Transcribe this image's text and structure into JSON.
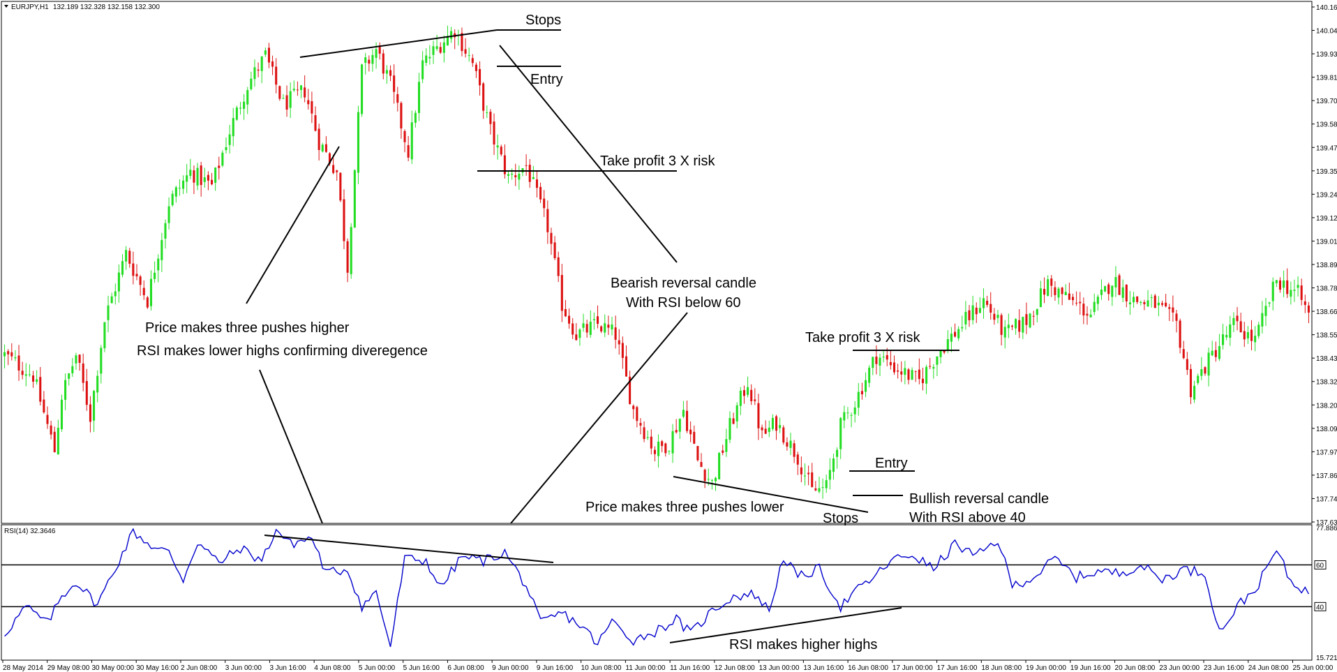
{
  "window": {
    "symbol_label": "EURJPY,H1",
    "ohlc_label": "132.189 132.328 132.158 132.300",
    "indicator_label": "RSI(14) 32.3646"
  },
  "colors": {
    "bull": "#22dd22",
    "bear": "#dd1111",
    "rsi_line": "#0000cc",
    "annotation": "#000000",
    "background": "#ffffff"
  },
  "chart_data": [
    {
      "type": "candlestick",
      "title": "EURJPY,H1",
      "ylim": [
        137.63,
        140.16
      ],
      "price_ticks": [
        "140.160",
        "140.045",
        "139.930",
        "139.815",
        "139.700",
        "139.585",
        "139.470",
        "139.355",
        "139.240",
        "139.125",
        "139.010",
        "138.895",
        "138.780",
        "138.665",
        "138.550",
        "138.435",
        "138.320",
        "138.205",
        "138.090",
        "137.975",
        "137.860",
        "137.745",
        "137.630"
      ],
      "time_ticks": [
        "28 May 2014",
        "29 May 08:00",
        "30 May 00:00",
        "30 May 16:00",
        "2 Jun 08:00",
        "3 Jun 00:00",
        "3 Jun 16:00",
        "4 Jun 08:00",
        "5 Jun 00:00",
        "5 Jun 16:00",
        "6 Jun 08:00",
        "9 Jun 00:00",
        "9 Jun 16:00",
        "10 Jun 08:00",
        "11 Jun 00:00",
        "11 Jun 16:00",
        "12 Jun 08:00",
        "13 Jun 00:00",
        "13 Jun 16:00",
        "16 Jun 08:00",
        "17 Jun 00:00",
        "17 Jun 16:00",
        "18 Jun 08:00",
        "19 Jun 00:00",
        "19 Jun 16:00",
        "20 Jun 08:00",
        "23 Jun 00:00",
        "23 Jun 16:00",
        "24 Jun 08:00",
        "25 Jun 00:00"
      ],
      "close_path": [
        [
          0,
          138.45
        ],
        [
          8,
          138.35
        ],
        [
          14,
          137.98
        ],
        [
          16,
          138.25
        ],
        [
          20,
          138.45
        ],
        [
          24,
          138.15
        ],
        [
          28,
          138.62
        ],
        [
          34,
          138.95
        ],
        [
          40,
          138.72
        ],
        [
          46,
          139.2
        ],
        [
          52,
          139.35
        ],
        [
          58,
          139.28
        ],
        [
          63,
          139.55
        ],
        [
          68,
          139.78
        ],
        [
          73,
          139.92
        ],
        [
          78,
          139.68
        ],
        [
          84,
          139.75
        ],
        [
          88,
          139.5
        ],
        [
          93,
          139.35
        ],
        [
          96,
          138.88
        ],
        [
          100,
          139.85
        ],
        [
          104,
          139.95
        ],
        [
          108,
          139.78
        ],
        [
          113,
          139.45
        ],
        [
          117,
          139.88
        ],
        [
          122,
          139.98
        ],
        [
          126,
          140.05
        ],
        [
          131,
          139.88
        ],
        [
          136,
          139.55
        ],
        [
          141,
          139.32
        ],
        [
          146,
          139.38
        ],
        [
          152,
          139.08
        ],
        [
          156,
          138.7
        ],
        [
          160,
          138.55
        ],
        [
          166,
          138.6
        ],
        [
          171,
          138.55
        ],
        [
          176,
          138.18
        ],
        [
          182,
          137.98
        ],
        [
          186,
          138.02
        ],
        [
          190,
          138.18
        ],
        [
          194,
          137.93
        ],
        [
          198,
          137.82
        ],
        [
          203,
          138.1
        ],
        [
          208,
          138.32
        ],
        [
          212,
          138.05
        ],
        [
          216,
          138.12
        ],
        [
          222,
          137.95
        ],
        [
          226,
          137.78
        ],
        [
          230,
          137.8
        ],
        [
          234,
          138.1
        ],
        [
          238,
          138.22
        ],
        [
          244,
          138.45
        ],
        [
          250,
          138.38
        ],
        [
          256,
          138.32
        ],
        [
          262,
          138.48
        ],
        [
          268,
          138.6
        ],
        [
          274,
          138.72
        ],
        [
          280,
          138.55
        ],
        [
          286,
          138.62
        ],
        [
          292,
          138.8
        ],
        [
          298,
          138.72
        ],
        [
          304,
          138.65
        ],
        [
          310,
          138.82
        ],
        [
          316,
          138.72
        ],
        [
          322,
          138.7
        ],
        [
          328,
          138.6
        ],
        [
          332,
          138.28
        ],
        [
          338,
          138.45
        ],
        [
          344,
          138.6
        ],
        [
          350,
          138.52
        ],
        [
          356,
          138.82
        ],
        [
          362,
          138.75
        ],
        [
          366,
          138.62
        ]
      ],
      "candle_count": 366
    },
    {
      "type": "line",
      "title": "RSI(14) 32.3646",
      "ylim": [
        15.721,
        77.8868
      ],
      "ticks": [
        "77.8868",
        "60",
        "40",
        "15.721"
      ],
      "levels": [
        60,
        40
      ],
      "rsi_path": [
        [
          0,
          27
        ],
        [
          6,
          40
        ],
        [
          12,
          32
        ],
        [
          16,
          45
        ],
        [
          20,
          52
        ],
        [
          26,
          41
        ],
        [
          32,
          62
        ],
        [
          36,
          76
        ],
        [
          42,
          68
        ],
        [
          46,
          66
        ],
        [
          50,
          53
        ],
        [
          54,
          71
        ],
        [
          60,
          61
        ],
        [
          66,
          68
        ],
        [
          72,
          62
        ],
        [
          76,
          77
        ],
        [
          80,
          70
        ],
        [
          86,
          73
        ],
        [
          90,
          56
        ],
        [
          96,
          58
        ],
        [
          100,
          40
        ],
        [
          104,
          47
        ],
        [
          108,
          21
        ],
        [
          112,
          63
        ],
        [
          118,
          62
        ],
        [
          122,
          49
        ],
        [
          128,
          64
        ],
        [
          134,
          62
        ],
        [
          140,
          66
        ],
        [
          146,
          50
        ],
        [
          150,
          32
        ],
        [
          156,
          37
        ],
        [
          162,
          30
        ],
        [
          166,
          22
        ],
        [
          170,
          33
        ],
        [
          176,
          24
        ],
        [
          182,
          28
        ],
        [
          188,
          34
        ],
        [
          192,
          27
        ],
        [
          198,
          38
        ],
        [
          204,
          45
        ],
        [
          210,
          46
        ],
        [
          214,
          38
        ],
        [
          218,
          64
        ],
        [
          222,
          54
        ],
        [
          228,
          58
        ],
        [
          234,
          40
        ],
        [
          238,
          47
        ],
        [
          244,
          55
        ],
        [
          248,
          62
        ],
        [
          254,
          65
        ],
        [
          260,
          58
        ],
        [
          266,
          70
        ],
        [
          272,
          64
        ],
        [
          278,
          72
        ],
        [
          282,
          50
        ],
        [
          288,
          54
        ],
        [
          294,
          63
        ],
        [
          300,
          54
        ],
        [
          306,
          57
        ],
        [
          312,
          56
        ],
        [
          318,
          60
        ],
        [
          324,
          53
        ],
        [
          330,
          58
        ],
        [
          336,
          56
        ],
        [
          340,
          28
        ],
        [
          346,
          42
        ],
        [
          350,
          48
        ],
        [
          356,
          67
        ],
        [
          360,
          52
        ],
        [
          366,
          46
        ]
      ]
    }
  ],
  "annotations": {
    "stops_top": "Stops",
    "entry_top": "Entry",
    "take_profit_top": "Take profit 3 X risk",
    "bearish_1": "Bearish reversal candle",
    "bearish_2": "With RSI below 60",
    "pushes_higher": "Price makes three pushes higher",
    "rsi_lower_highs": "RSI makes lower highs confirming diveregence",
    "take_profit_bottom": "Take profit 3 X risk",
    "entry_bottom": "Entry",
    "bullish_1": "Bullish reversal candle",
    "bullish_2": "With RSI above 40",
    "pushes_lower": "Price makes three pushes lower",
    "stops_bottom": "Stops",
    "rsi_higher_highs": "RSI makes higher highs"
  }
}
